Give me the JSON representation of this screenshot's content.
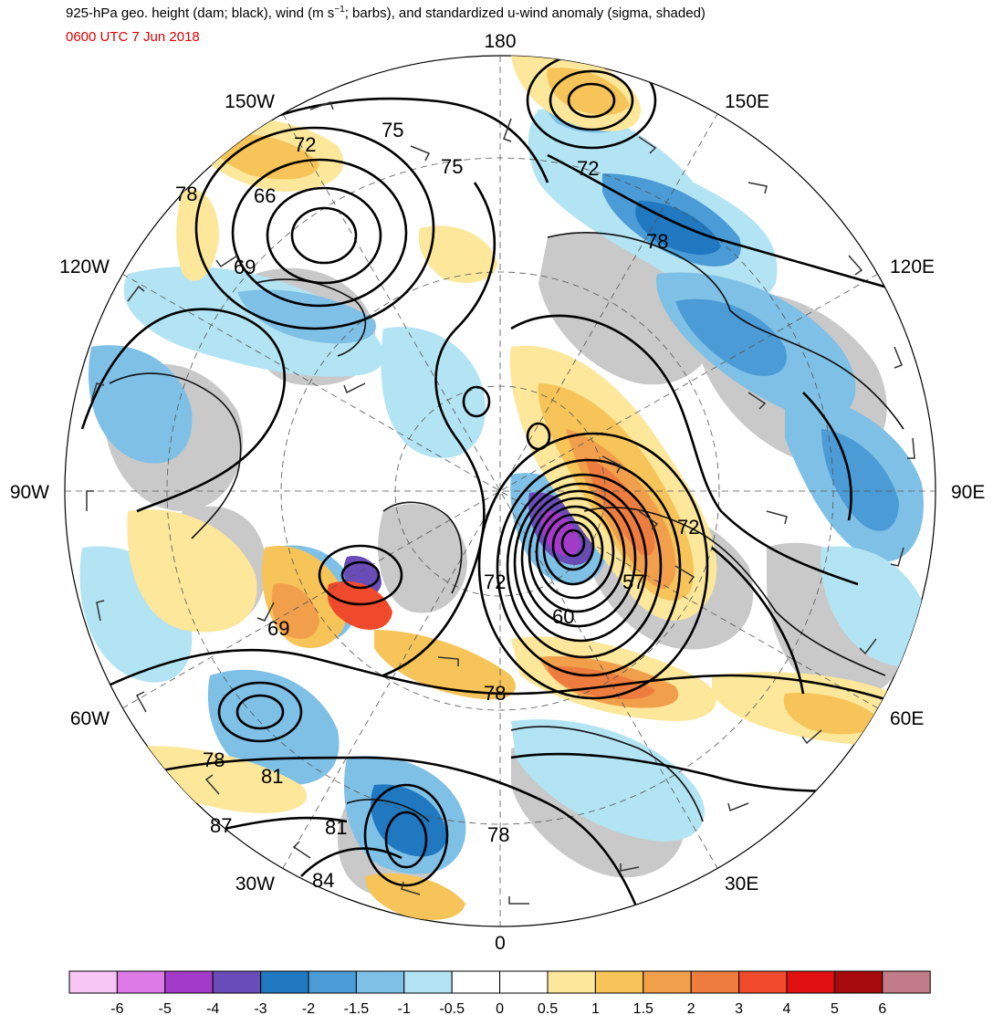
{
  "title": {
    "line1_pre": "925-hPa geo. height (dam; black), wind (m s",
    "line1_sup": "−1",
    "line1_post": "; barbs), and standardized u-wind anomaly (sigma, shaded)",
    "valid_time": "0600 UTC 7 Jun 2018"
  },
  "longitude_labels": [
    "180",
    "150E",
    "120E",
    "90E",
    "60E",
    "30E",
    "0",
    "30W",
    "60W",
    "90W",
    "120W",
    "150W"
  ],
  "contour_labels": [
    "75",
    "75",
    "72",
    "66",
    "78",
    "69",
    "72",
    "78",
    "72",
    "72",
    "60",
    "57",
    "69",
    "78",
    "78",
    "81",
    "87",
    "81",
    "84",
    "78"
  ],
  "colorbar": {
    "labels": [
      "-6",
      "-5",
      "-4",
      "-3",
      "-2",
      "-1.5",
      "-1",
      "-0.5",
      "0",
      "0.5",
      "1",
      "1.5",
      "2",
      "3",
      "4",
      "5",
      "6"
    ],
    "colors": [
      "#f7c6f4",
      "#dd7ae8",
      "#a33ac9",
      "#6a4cb8",
      "#1f78c0",
      "#4b9bd6",
      "#7fc0e6",
      "#b3e4f3",
      "#ffffff",
      "#ffffff",
      "#fce79a",
      "#f6c458",
      "#f29f4c",
      "#ee7c3e",
      "#f04a2d",
      "#e01010",
      "#a60a0a",
      "#c27b88"
    ]
  }
}
